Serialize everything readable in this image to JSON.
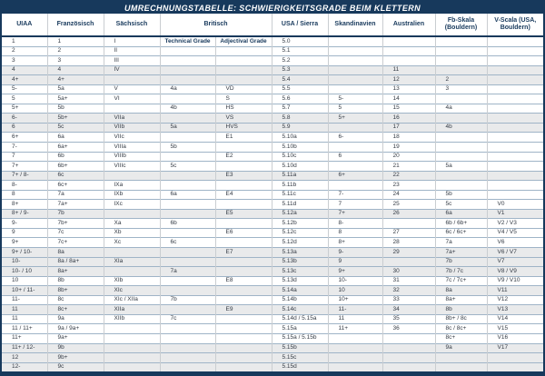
{
  "title": "UMRECHNUNGSTABELLE: SCHWIERIGKEITSGRADE BEIM KLETTERN",
  "colors": {
    "header_navy": "#17395C",
    "row_stripe": "#E9EAEB",
    "row_divider": "#9FB4C7",
    "column_divider": "#C9CDD1",
    "header_text": "#17395C",
    "body_text": "#333A44",
    "title_text": "#FFFFFF"
  },
  "chart_data": {
    "type": "table",
    "title": "UMRECHNUNGSTABELLE: SCHWIERIGKEITSGRADE BEIM KLETTERN",
    "columns": [
      {
        "label": "UIAA",
        "span": 1
      },
      {
        "label": "Französisch",
        "span": 1
      },
      {
        "label": "Sächsisch",
        "span": 1
      },
      {
        "label": "Britisch",
        "span": 2
      },
      {
        "label": "USA / Sierra",
        "span": 1
      },
      {
        "label": "Skandinavien",
        "span": 1
      },
      {
        "label": "Australien",
        "span": 1
      },
      {
        "label": "Fb-Skala (Bouldern)",
        "span": 1
      },
      {
        "label": "V-Scala (USA, Bouldern)",
        "span": 1
      }
    ],
    "sub_columns_britisch": [
      "Technical Grade",
      "Adjectival Grade"
    ],
    "rows": [
      {
        "shaded": false,
        "cells": [
          "1",
          "1",
          "I",
          "Technical Grade",
          "Adjectival Grade",
          "5.0",
          "",
          "",
          "",
          ""
        ]
      },
      {
        "shaded": false,
        "cells": [
          "2",
          "2",
          "II",
          "",
          "",
          "5.1",
          "",
          "",
          "",
          ""
        ]
      },
      {
        "shaded": false,
        "cells": [
          "3",
          "3",
          "III",
          "",
          "",
          "5.2",
          "",
          "",
          "",
          ""
        ]
      },
      {
        "shaded": true,
        "cells": [
          "4",
          "4",
          "IV",
          "",
          "",
          "5.3",
          "",
          "11",
          "",
          ""
        ]
      },
      {
        "shaded": true,
        "cells": [
          "4+",
          "4+",
          "",
          "",
          "",
          "5.4",
          "",
          "12",
          "2",
          ""
        ]
      },
      {
        "shaded": false,
        "cells": [
          "5-",
          "5a",
          "V",
          "4a",
          "VD",
          "5.5",
          "",
          "13",
          "3",
          ""
        ]
      },
      {
        "shaded": false,
        "cells": [
          "5",
          "5a+",
          "VI",
          "",
          "S",
          "5.6",
          "5-",
          "14",
          "",
          ""
        ]
      },
      {
        "shaded": false,
        "cells": [
          "5+",
          "5b",
          "",
          "4b",
          "HS",
          "5.7",
          "5",
          "15",
          "4a",
          ""
        ]
      },
      {
        "shaded": true,
        "cells": [
          "6-",
          "5b+",
          "VIIa",
          "",
          "VS",
          "5.8",
          "5+",
          "16",
          "",
          ""
        ]
      },
      {
        "shaded": true,
        "cells": [
          "6",
          "5c",
          "VIIb",
          "5a",
          "HVS",
          "5.9",
          "",
          "17",
          "4b",
          ""
        ]
      },
      {
        "shaded": false,
        "cells": [
          "6+",
          "6a",
          "VIIc",
          "",
          "E1",
          "5.10a",
          "6-",
          "18",
          "",
          ""
        ]
      },
      {
        "shaded": false,
        "cells": [
          "7-",
          "6a+",
          "VIIIa",
          "5b",
          "",
          "5.10b",
          "",
          "19",
          "",
          ""
        ]
      },
      {
        "shaded": false,
        "cells": [
          "7",
          "6b",
          "VIIIb",
          "",
          "E2",
          "5.10c",
          "6",
          "20",
          "",
          ""
        ]
      },
      {
        "shaded": false,
        "cells": [
          "7+",
          "6b+",
          "VIIIc",
          "5c",
          "",
          "5.10d",
          "",
          "21",
          "5a",
          ""
        ]
      },
      {
        "shaded": true,
        "cells": [
          "7+ / 8-",
          "6c",
          "",
          "",
          "E3",
          "5.11a",
          "6+",
          "22",
          "",
          ""
        ]
      },
      {
        "shaded": false,
        "cells": [
          "8-",
          "6c+",
          "IXa",
          "",
          "",
          "5.11b",
          "",
          "23",
          "",
          ""
        ]
      },
      {
        "shaded": false,
        "cells": [
          "8",
          "7a",
          "IXb",
          "6a",
          "E4",
          "5.11c",
          "7-",
          "24",
          "5b",
          ""
        ]
      },
      {
        "shaded": false,
        "cells": [
          "8+",
          "7a+",
          "IXc",
          "",
          "",
          "5.11d",
          "7",
          "25",
          "5c",
          "V0"
        ]
      },
      {
        "shaded": true,
        "cells": [
          "8+ / 9-",
          "7b",
          "",
          "",
          "E5",
          "5.12a",
          "7+",
          "26",
          "6a",
          "V1"
        ]
      },
      {
        "shaded": false,
        "cells": [
          "9-",
          "7b+",
          "Xa",
          "6b",
          "",
          "5.12b",
          "8-",
          "",
          "6b / 6b+",
          "V2 / V3"
        ]
      },
      {
        "shaded": false,
        "cells": [
          "9",
          "7c",
          "Xb",
          "",
          "E6",
          "5.12c",
          "8",
          "27",
          "6c / 6c+",
          "V4 / V5"
        ]
      },
      {
        "shaded": false,
        "cells": [
          "9+",
          "7c+",
          "Xc",
          "6c",
          "",
          "5.12d",
          "8+",
          "28",
          "7a",
          "V6"
        ]
      },
      {
        "shaded": true,
        "cells": [
          "9+ / 10-",
          "8a",
          "",
          "",
          "E7",
          "5.13a",
          "9-",
          "29",
          "7a+",
          "V6 / V7"
        ]
      },
      {
        "shaded": true,
        "cells": [
          "10-",
          "8a / 8a+",
          "XIa",
          "",
          "",
          "5.13b",
          "9",
          "",
          "7b",
          "V7"
        ]
      },
      {
        "shaded": true,
        "cells": [
          "10- / 10",
          "8a+",
          "",
          "7a",
          "",
          "5.13c",
          "9+",
          "30",
          "7b / 7c",
          "V8 / V9"
        ]
      },
      {
        "shaded": false,
        "cells": [
          "10",
          "8b",
          "XIb",
          "",
          "E8",
          "5.13d",
          "10-",
          "31",
          "7c / 7c+",
          "V9 / V10"
        ]
      },
      {
        "shaded": true,
        "cells": [
          "10+ / 11-",
          "8b+",
          "XIc",
          "",
          "",
          "5.14a",
          "10",
          "32",
          "8a",
          "V11"
        ]
      },
      {
        "shaded": false,
        "cells": [
          "11-",
          "8c",
          "XIc / XIIa",
          "7b",
          "",
          "5.14b",
          "10+",
          "33",
          "8a+",
          "V12"
        ]
      },
      {
        "shaded": true,
        "cells": [
          "11",
          "8c+",
          "XIIa",
          "",
          "E9",
          "5.14c",
          "11-",
          "34",
          "8b",
          "V13"
        ]
      },
      {
        "shaded": false,
        "cells": [
          "11",
          "9a",
          "XIIb",
          "7c",
          "",
          "5.14d / 5.15a",
          "11",
          "35",
          "8b+ / 8c",
          "V14"
        ]
      },
      {
        "shaded": false,
        "cells": [
          "11 / 11+",
          "9a / 9a+",
          "",
          "",
          "",
          "5.15a",
          "11+",
          "36",
          "8c / 8c+",
          "V15"
        ]
      },
      {
        "shaded": false,
        "cells": [
          "11+",
          "9a+",
          "",
          "",
          "",
          "5.15a / 5.15b",
          "",
          "",
          "8c+",
          "V16"
        ]
      },
      {
        "shaded": true,
        "cells": [
          "11+ / 12-",
          "9b",
          "",
          "",
          "",
          "5.15b",
          "",
          "",
          "9a",
          "V17"
        ]
      },
      {
        "shaded": true,
        "cells": [
          "12",
          "9b+",
          "",
          "",
          "",
          "5.15c",
          "",
          "",
          "",
          ""
        ]
      },
      {
        "shaded": true,
        "cells": [
          "12-",
          "9c",
          "",
          "",
          "",
          "5.15d",
          "",
          "",
          "",
          ""
        ]
      }
    ]
  }
}
